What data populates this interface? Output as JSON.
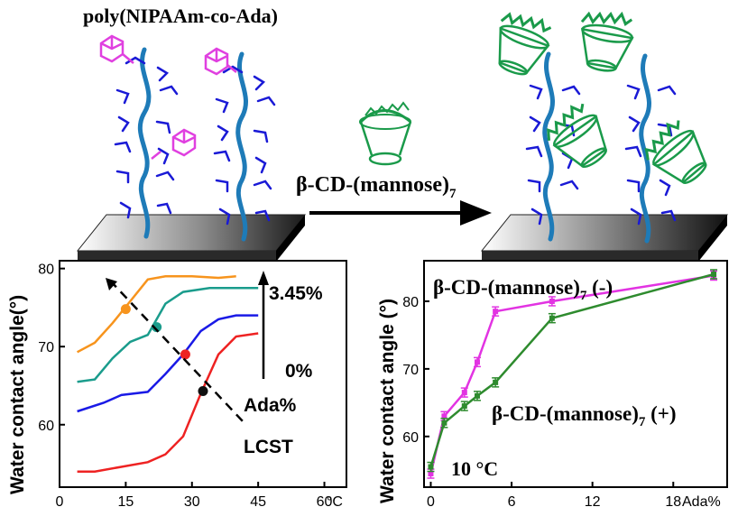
{
  "top": {
    "polymer_label": "poly(NIPAAm-co-Ada)",
    "arrow_label": "β-CD-(mannose)",
    "arrow_label_sub": "7"
  },
  "chart_left": {
    "ylabel": "Water contact angle(°)",
    "xunit": "°C",
    "annot_high": "3.45%",
    "annot_low": "0%",
    "annot_ada": "Ada%",
    "annot_lcst": "LCST"
  },
  "chart_right": {
    "ylabel": "Water contact angle (°)",
    "xunit": "Ada%",
    "label_minus": "β-CD-(mannose)",
    "label_minus_sub": "7",
    "label_minus_tail": " (-)",
    "label_plus": "β-CD-(mannose)",
    "label_plus_sub": "7",
    "label_plus_tail": " (+)",
    "temp_label": "10 °C"
  },
  "chart_data": [
    {
      "type": "line",
      "xlim": [
        0,
        65
      ],
      "ylim": [
        52,
        81
      ],
      "xticks": [
        0,
        15,
        30,
        45,
        60
      ],
      "yticks": [
        60,
        70,
        80
      ],
      "series": [
        {
          "color": "#f7941d",
          "x": [
            4,
            8,
            12,
            16,
            20,
            24,
            30,
            36,
            40
          ],
          "y": [
            69.3,
            70.5,
            73,
            75.8,
            78.6,
            79.0,
            79.0,
            78.8,
            79.0
          ],
          "marker_x": 15,
          "marker_y": 74.8
        },
        {
          "color": "#1a9c8c",
          "x": [
            4,
            8,
            12,
            16,
            20,
            24,
            28,
            34,
            45
          ],
          "y": [
            65.5,
            65.8,
            68.5,
            70.6,
            71.5,
            75.5,
            77.0,
            77.5,
            77.5
          ],
          "marker_x": 22,
          "marker_y": 72.5
        },
        {
          "color": "#1a1ae6",
          "x": [
            4,
            10,
            14,
            20,
            24,
            28,
            32,
            36,
            40,
            45
          ],
          "y": [
            61.7,
            62.8,
            63.8,
            64.2,
            66.5,
            69.0,
            72.0,
            73.5,
            74.0,
            74.0
          ],
          "marker_x": 28.5,
          "marker_y": 69.0
        },
        {
          "color": "#ee2222",
          "x": [
            4,
            8,
            14,
            20,
            24,
            28,
            32,
            36,
            40,
            45
          ],
          "y": [
            54.0,
            54.0,
            54.6,
            55.2,
            56.2,
            58.5,
            64.0,
            69.0,
            71.3,
            71.7
          ],
          "marker_x": 32.5,
          "marker_y": 64.3
        }
      ]
    },
    {
      "type": "line",
      "xlim": [
        -0.5,
        22
      ],
      "ylim": [
        52.5,
        86
      ],
      "xticks": [
        0,
        6,
        12,
        18
      ],
      "yticks": [
        60,
        70,
        80
      ],
      "series": [
        {
          "color": "#e233e2",
          "x": [
            0,
            1,
            2.5,
            3.45,
            4.8,
            9,
            21
          ],
          "y": [
            54.5,
            63.0,
            66.5,
            71.0,
            78.5,
            80.0,
            83.8
          ]
        },
        {
          "color": "#2e8b2e",
          "x": [
            0,
            1,
            2.5,
            3.45,
            4.8,
            9,
            21
          ],
          "y": [
            55.5,
            62.0,
            64.5,
            66.0,
            68.0,
            77.5,
            84.0
          ]
        }
      ]
    }
  ]
}
